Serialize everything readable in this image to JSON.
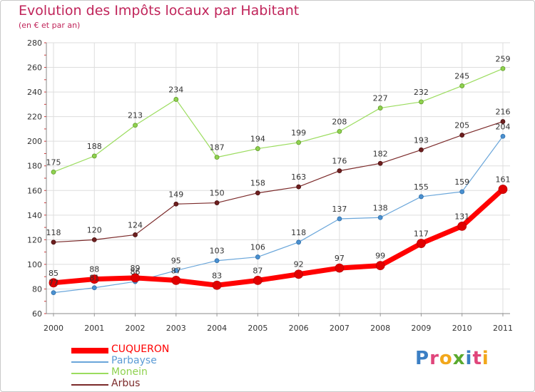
{
  "title": "Evolution des Impôts locaux par Habitant",
  "subtitle": "(en € et par an)",
  "logo_text": "Proxiti",
  "chart_data": {
    "type": "line",
    "title": "Evolution des Impôts locaux par Habitant",
    "subtitle": "(en € et par an)",
    "x": [
      2000,
      2001,
      2002,
      2003,
      2004,
      2005,
      2006,
      2007,
      2008,
      2009,
      2010,
      2011
    ],
    "x_tick_labels": [
      "2000",
      "2001",
      "2002",
      "2003",
      "2004",
      "2005",
      "2006",
      "2007",
      "2008",
      "2009",
      "2010",
      "2011"
    ],
    "ylim": [
      60,
      280
    ],
    "y_ticks": [
      60,
      80,
      100,
      120,
      140,
      160,
      180,
      200,
      220,
      240,
      260,
      280
    ],
    "grid": true,
    "legend_position": "bottom-left",
    "series": [
      {
        "name": "CUQUERON",
        "color": "#ff0000",
        "values": [
          85,
          88,
          89,
          87,
          83,
          87,
          92,
          97,
          99,
          117,
          131,
          161
        ],
        "value_labels": [
          "85",
          "88",
          "89",
          "87",
          "83",
          "87",
          "92",
          "97",
          "99",
          "117",
          "131",
          "161"
        ]
      },
      {
        "name": "Parbayse",
        "color": "#5b9bd5",
        "values": [
          77,
          81,
          86,
          95,
          103,
          106,
          118,
          137,
          138,
          155,
          159,
          204
        ],
        "value_labels": [
          "77",
          "81",
          "86",
          "95",
          "103",
          "106",
          "118",
          "137",
          "138",
          "155",
          "159",
          "204"
        ]
      },
      {
        "name": "Monein",
        "color": "#8fd14f",
        "values": [
          175,
          188,
          213,
          234,
          187,
          194,
          199,
          208,
          227,
          232,
          245,
          259
        ],
        "value_labels": [
          "175",
          "188",
          "213",
          "234",
          "187",
          "194",
          "199",
          "208",
          "227",
          "232",
          "245",
          "259"
        ]
      },
      {
        "name": "Arbus",
        "color": "#7b2a2a",
        "values": [
          118,
          120,
          124,
          149,
          150,
          158,
          163,
          176,
          182,
          193,
          205,
          216
        ],
        "value_labels": [
          "118",
          "120",
          "124",
          "149",
          "150",
          "158",
          "163",
          "176",
          "182",
          "193",
          "205",
          "216"
        ]
      }
    ]
  }
}
